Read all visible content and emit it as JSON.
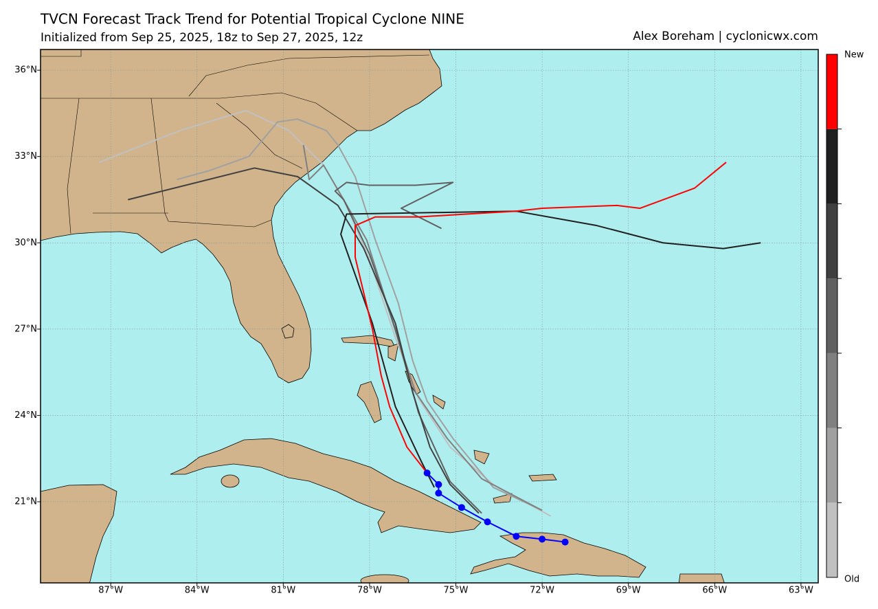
{
  "chart_data": {
    "type": "map",
    "title": "TVCN Forecast Track Trend for Potential Tropical Cyclone NINE",
    "subtitle": "Initialized from Sep 25, 2025, 18z to Sep 27, 2025, 12z",
    "credit": "Alex Boreham | cyclonicwx.com",
    "xlim": [
      -89.44,
      -62.4
    ],
    "ylim": [
      18.18,
      36.72
    ],
    "xticks": [
      {
        "value": -87,
        "label": "87°W"
      },
      {
        "value": -84,
        "label": "84°W"
      },
      {
        "value": -81,
        "label": "81°W"
      },
      {
        "value": -78,
        "label": "78°W"
      },
      {
        "value": -75,
        "label": "75°W"
      },
      {
        "value": -72,
        "label": "72°W"
      },
      {
        "value": -69,
        "label": "69°W"
      },
      {
        "value": -66,
        "label": "66°W"
      },
      {
        "value": -63,
        "label": "63°W"
      }
    ],
    "yticks": [
      {
        "value": 21,
        "label": "21°N"
      },
      {
        "value": 24,
        "label": "24°N"
      },
      {
        "value": 27,
        "label": "27°N"
      },
      {
        "value": 30,
        "label": "30°N"
      },
      {
        "value": 33,
        "label": "33°N"
      },
      {
        "value": 36,
        "label": "36°N"
      }
    ],
    "grid": true,
    "series": [
      {
        "color": "#c0c0c0",
        "x": [
          -71.7,
          -73.7,
          -75.2,
          -76.3,
          -77.1,
          -78.0,
          -78.8,
          -79.6,
          -80.8,
          -82.3,
          -84.6,
          -87.4
        ],
        "y": [
          20.5,
          21.6,
          22.9,
          24.6,
          26.7,
          29.4,
          31.3,
          32.7,
          33.9,
          34.6,
          33.9,
          32.8
        ]
      },
      {
        "color": "#a0a0a0",
        "x": [
          -72.0,
          -73.7,
          -75.1,
          -76.0,
          -76.5,
          -77.0,
          -77.8,
          -78.5,
          -79.1,
          -79.5,
          -80.5,
          -81.2,
          -82.2,
          -83.6,
          -84.7
        ],
        "y": [
          20.7,
          21.5,
          23.2,
          24.5,
          25.9,
          27.9,
          30.1,
          32.3,
          33.4,
          33.9,
          34.3,
          34.2,
          33.0,
          32.5,
          32.2
        ]
      },
      {
        "color": "#808080",
        "x": [
          -72.0,
          -74.1,
          -75.3,
          -76.4,
          -76.9,
          -77.4,
          -78.1,
          -78.9,
          -79.6,
          -80.1,
          -80.3
        ],
        "y": [
          20.7,
          21.8,
          23.2,
          24.8,
          26.3,
          27.9,
          30.1,
          31.5,
          32.7,
          32.2,
          33.4
        ]
      },
      {
        "color": "#606060",
        "x": [
          -74.1,
          -75.2,
          -76.3,
          -77.1,
          -78.0,
          -78.9,
          -79.2,
          -78.8,
          -78.0,
          -76.4,
          -75.1,
          -76.9,
          -75.5
        ],
        "y": [
          20.6,
          21.7,
          24.1,
          27.0,
          29.6,
          31.5,
          31.8,
          32.1,
          32.0,
          32.0,
          32.1,
          31.2,
          30.5
        ]
      },
      {
        "color": "#404040",
        "x": [
          -74.2,
          -75.2,
          -75.9,
          -76.5,
          -77.1,
          -78.2,
          -79.1,
          -80.5,
          -82.0,
          -86.4
        ],
        "y": [
          20.6,
          21.6,
          22.9,
          24.8,
          27.2,
          29.8,
          31.3,
          32.3,
          32.6,
          31.5
        ]
      },
      {
        "color": "#202020",
        "x": [
          -75.75,
          -76.2,
          -77.1,
          -77.9,
          -79.0,
          -78.8,
          -72.9,
          -70.1,
          -67.8,
          -65.7,
          -64.4
        ],
        "y": [
          21.5,
          22.4,
          24.3,
          27.2,
          30.3,
          31.0,
          31.1,
          30.6,
          30.0,
          29.8,
          30.0
        ]
      },
      {
        "color": "#ff0000",
        "x": [
          -76.0,
          -76.7,
          -77.3,
          -77.6,
          -77.9,
          -78.5,
          -78.5,
          -77.8,
          -76.3,
          -74.6,
          -72.9,
          -72.0,
          -69.4,
          -68.6,
          -66.7,
          -65.6
        ],
        "y": [
          22.0,
          22.9,
          24.3,
          25.4,
          27.0,
          29.5,
          30.6,
          30.9,
          30.9,
          31.0,
          31.1,
          31.2,
          31.3,
          31.2,
          31.9,
          32.8
        ]
      },
      {
        "color": "#0000ff",
        "markers": true,
        "x": [
          -76.0,
          -75.6,
          -75.6,
          -74.8,
          -73.9,
          -72.9,
          -72.0,
          -71.2
        ],
        "y": [
          22.0,
          21.6,
          21.3,
          20.8,
          20.3,
          19.8,
          19.7,
          19.6
        ]
      }
    ],
    "colorbar": {
      "colors": [
        "#c0c0c0",
        "#a0a0a0",
        "#808080",
        "#606060",
        "#404040",
        "#202020",
        "#ff0000"
      ],
      "top_label": "New",
      "bottom_label": "Old"
    }
  }
}
